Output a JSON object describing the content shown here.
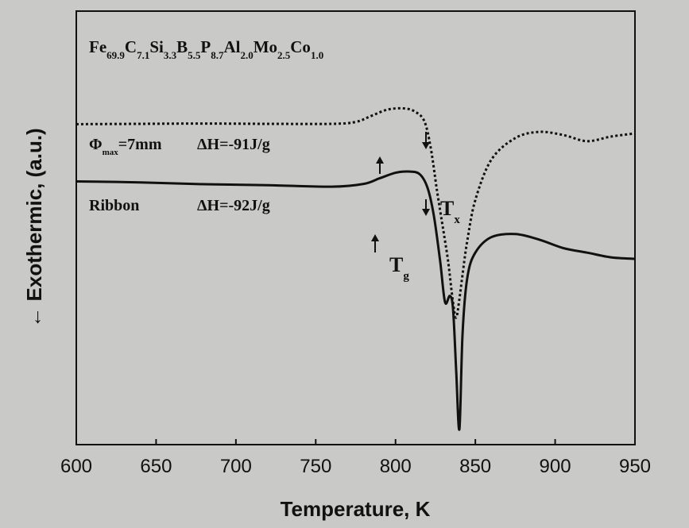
{
  "chart_data": {
    "type": "line",
    "title": "",
    "composition": {
      "elements": [
        {
          "el": "Fe",
          "sub": "69.9"
        },
        {
          "el": "C",
          "sub": "7.1"
        },
        {
          "el": "Si",
          "sub": "3.3"
        },
        {
          "el": "B",
          "sub": "5.5"
        },
        {
          "el": "P",
          "sub": "8.7"
        },
        {
          "el": "Al",
          "sub": "2.0"
        },
        {
          "el": "Mo",
          "sub": "2.5"
        },
        {
          "el": "Co",
          "sub": "1.0"
        }
      ]
    },
    "xlabel": "Temperature, K",
    "ylabel": "Exothermic, (a.u.)",
    "ylabel_arrow": "←",
    "xlim": [
      600,
      950
    ],
    "x_ticks": [
      600,
      650,
      700,
      750,
      800,
      850,
      900,
      950
    ],
    "y_ticks_shown": false,
    "grid": false,
    "series": [
      {
        "style": "dotted",
        "label_parts": {
          "symbol": "Φ",
          "sub": "max",
          "rest": "=7mm",
          "dh": "ΔH=-91J/g"
        },
        "x": [
          600,
          640,
          680,
          720,
          760,
          775,
          785,
          795,
          805,
          812,
          818,
          822,
          826,
          830,
          833,
          836,
          838,
          840,
          842,
          845,
          850,
          860,
          875,
          890,
          905,
          920,
          935,
          950
        ],
        "y": [
          5.35,
          5.36,
          5.37,
          5.36,
          5.36,
          5.42,
          5.62,
          5.82,
          5.86,
          5.76,
          5.45,
          4.6,
          3.2,
          1.9,
          0.9,
          -0.4,
          -0.9,
          -0.3,
          0.5,
          1.6,
          2.9,
          4.2,
          4.9,
          5.1,
          5.0,
          4.8,
          4.95,
          5.05
        ]
      },
      {
        "style": "solid",
        "name": "Ribbon",
        "dh_label": "ΔH=-92J/g",
        "x": [
          600,
          640,
          680,
          720,
          760,
          780,
          790,
          800,
          808,
          815,
          820,
          824,
          828,
          831,
          834,
          836,
          838,
          840,
          842,
          845,
          850,
          860,
          875,
          890,
          905,
          920,
          935,
          950
        ],
        "y": [
          3.5,
          3.47,
          3.41,
          3.38,
          3.33,
          3.42,
          3.6,
          3.78,
          3.82,
          3.74,
          3.3,
          2.4,
          0.9,
          -0.4,
          -0.2,
          -0.6,
          -2.6,
          -4.5,
          -1.4,
          0.4,
          1.2,
          1.7,
          1.8,
          1.62,
          1.35,
          1.2,
          1.05,
          1.0
        ]
      }
    ],
    "annotations": [
      {
        "text": "T",
        "sub": "x"
      },
      {
        "text": "T",
        "sub": "g"
      }
    ],
    "ylim": [
      -5,
      9
    ]
  }
}
